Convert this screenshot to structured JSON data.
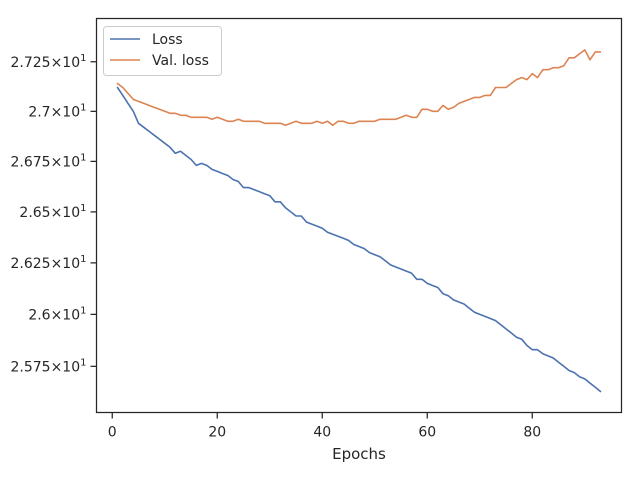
{
  "chart_data": {
    "type": "line",
    "xlabel": "Epochs",
    "ylabel": "",
    "xlim": [
      -3,
      97
    ],
    "ylim": [
      25.53,
      27.47
    ],
    "yscale": "log",
    "grid": false,
    "legend_position": "top-left",
    "x_ticks": [
      0,
      20,
      40,
      60,
      80
    ],
    "x_tick_labels": [
      "0",
      "20",
      "40",
      "60",
      "80"
    ],
    "y_ticks": [
      25.75,
      26.0,
      26.25,
      26.5,
      26.75,
      27.0,
      27.25
    ],
    "y_tick_labels": [
      {
        "mant": "2.575",
        "exp": "1"
      },
      {
        "mant": "2.6",
        "exp": "1"
      },
      {
        "mant": "2.625",
        "exp": "1"
      },
      {
        "mant": "2.65",
        "exp": "1"
      },
      {
        "mant": "2.675",
        "exp": "1"
      },
      {
        "mant": "2.7",
        "exp": "1"
      },
      {
        "mant": "2.725",
        "exp": "1"
      }
    ],
    "series": [
      {
        "name": "Loss",
        "color": "#4c72b0",
        "x": [
          1,
          2,
          3,
          4,
          5,
          6,
          7,
          8,
          9,
          10,
          11,
          12,
          13,
          14,
          15,
          16,
          17,
          18,
          19,
          20,
          21,
          22,
          23,
          24,
          25,
          26,
          27,
          28,
          29,
          30,
          31,
          32,
          33,
          34,
          35,
          36,
          37,
          38,
          39,
          40,
          41,
          42,
          43,
          44,
          45,
          46,
          47,
          48,
          49,
          50,
          51,
          52,
          53,
          54,
          55,
          56,
          57,
          58,
          59,
          60,
          61,
          62,
          63,
          64,
          65,
          66,
          67,
          68,
          69,
          70,
          71,
          72,
          73,
          74,
          75,
          76,
          77,
          78,
          79,
          80,
          81,
          82,
          83,
          84,
          85,
          86,
          87,
          88,
          89,
          90,
          91,
          92,
          93
        ],
        "values": [
          27.12,
          27.08,
          27.04,
          27.0,
          26.94,
          26.92,
          26.9,
          26.88,
          26.86,
          26.84,
          26.82,
          26.79,
          26.8,
          26.78,
          26.76,
          26.73,
          26.74,
          26.73,
          26.71,
          26.7,
          26.69,
          26.68,
          26.66,
          26.65,
          26.62,
          26.62,
          26.61,
          26.6,
          26.59,
          26.58,
          26.55,
          26.55,
          26.52,
          26.5,
          26.48,
          26.48,
          26.45,
          26.44,
          26.43,
          26.42,
          26.4,
          26.39,
          26.38,
          26.37,
          26.36,
          26.34,
          26.33,
          26.32,
          26.3,
          26.29,
          26.28,
          26.26,
          26.24,
          26.23,
          26.22,
          26.21,
          26.2,
          26.17,
          26.17,
          26.15,
          26.14,
          26.13,
          26.1,
          26.09,
          26.07,
          26.06,
          26.05,
          26.03,
          26.01,
          26.0,
          25.99,
          25.98,
          25.97,
          25.95,
          25.93,
          25.91,
          25.89,
          25.88,
          25.85,
          25.83,
          25.83,
          25.81,
          25.8,
          25.79,
          25.77,
          25.75,
          25.73,
          25.72,
          25.7,
          25.69,
          25.67,
          25.65,
          25.63
        ]
      },
      {
        "name": "Val. loss",
        "color": "#dd8452",
        "x": [
          1,
          2,
          3,
          4,
          5,
          6,
          7,
          8,
          9,
          10,
          11,
          12,
          13,
          14,
          15,
          16,
          17,
          18,
          19,
          20,
          21,
          22,
          23,
          24,
          25,
          26,
          27,
          28,
          29,
          30,
          31,
          32,
          33,
          34,
          35,
          36,
          37,
          38,
          39,
          40,
          41,
          42,
          43,
          44,
          45,
          46,
          47,
          48,
          49,
          50,
          51,
          52,
          53,
          54,
          55,
          56,
          57,
          58,
          59,
          60,
          61,
          62,
          63,
          64,
          65,
          66,
          67,
          68,
          69,
          70,
          71,
          72,
          73,
          74,
          75,
          76,
          77,
          78,
          79,
          80,
          81,
          82,
          83,
          84,
          85,
          86,
          87,
          88,
          89,
          90,
          91,
          92,
          93
        ],
        "values": [
          27.14,
          27.12,
          27.09,
          27.06,
          27.05,
          27.04,
          27.03,
          27.02,
          27.01,
          27.0,
          26.99,
          26.99,
          26.98,
          26.98,
          26.97,
          26.97,
          26.97,
          26.97,
          26.96,
          26.97,
          26.96,
          26.95,
          26.95,
          26.96,
          26.95,
          26.95,
          26.95,
          26.95,
          26.94,
          26.94,
          26.94,
          26.94,
          26.93,
          26.94,
          26.95,
          26.94,
          26.94,
          26.94,
          26.95,
          26.94,
          26.95,
          26.93,
          26.95,
          26.95,
          26.94,
          26.94,
          26.95,
          26.95,
          26.95,
          26.95,
          26.96,
          26.96,
          26.96,
          26.96,
          26.97,
          26.98,
          26.97,
          26.97,
          27.01,
          27.01,
          27.0,
          27.0,
          27.03,
          27.01,
          27.02,
          27.04,
          27.05,
          27.06,
          27.07,
          27.07,
          27.08,
          27.08,
          27.12,
          27.12,
          27.12,
          27.14,
          27.16,
          27.17,
          27.16,
          27.19,
          27.17,
          27.21,
          27.21,
          27.22,
          27.22,
          27.23,
          27.27,
          27.27,
          27.29,
          27.31,
          27.26,
          27.3,
          27.3
        ]
      }
    ]
  }
}
